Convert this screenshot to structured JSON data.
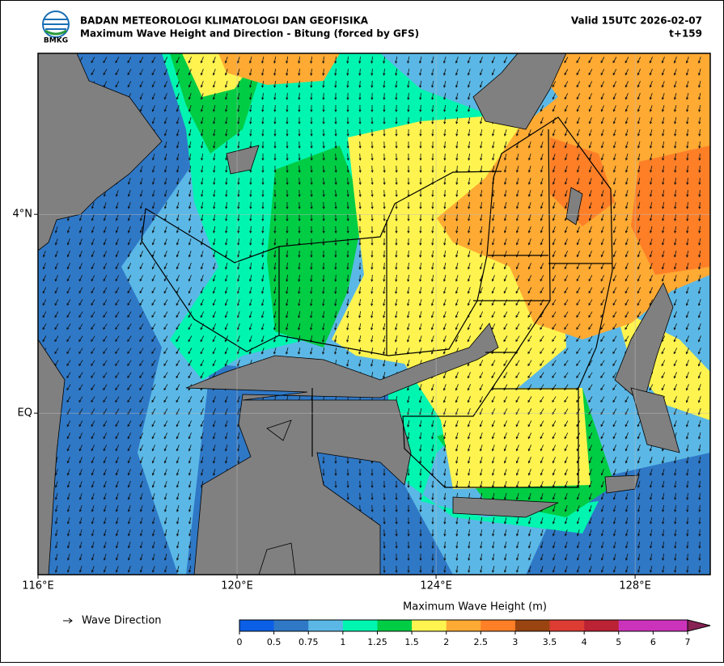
{
  "header": {
    "logo_text": "BMKG",
    "title": "BADAN METEOROLOGI KLIMATOLOGI DAN GEOFISIKA",
    "subtitle": "Maximum Wave Height and Direction - Bitung (forced by GFS)",
    "valid": "Valid 15UTC 2026-02-07",
    "lead": "t+159"
  },
  "map": {
    "xlim": [
      116,
      129.51
    ],
    "ylim": [
      -3.25,
      7.24
    ],
    "xticks": [
      {
        "value": 116,
        "label": "116°E"
      },
      {
        "value": 120,
        "label": "120°E"
      },
      {
        "value": 124,
        "label": "124°E"
      },
      {
        "value": 128,
        "label": "128°E"
      }
    ],
    "yticks": [
      {
        "value": 4,
        "label": "4°N"
      },
      {
        "value": 0,
        "label": "EQ"
      }
    ]
  },
  "legend": {
    "arrow_label": "Wave Direction"
  },
  "colorbar": {
    "title": "Maximum Wave Height (m)",
    "ticks": [
      0,
      0.5,
      0.75,
      1,
      1.25,
      1.5,
      2,
      2.5,
      3,
      3.5,
      4,
      5,
      6,
      7
    ],
    "colors": [
      "#0b5fe6",
      "#2f78c6",
      "#5bb8e6",
      "#00f5b0",
      "#00cc44",
      "#fff44f",
      "#ffaa33",
      "#ff7f27",
      "#994411",
      "#dd3c33",
      "#bb2233",
      "#cc33bb",
      "#cc33bb"
    ],
    "extend_color": "#882255"
  }
}
